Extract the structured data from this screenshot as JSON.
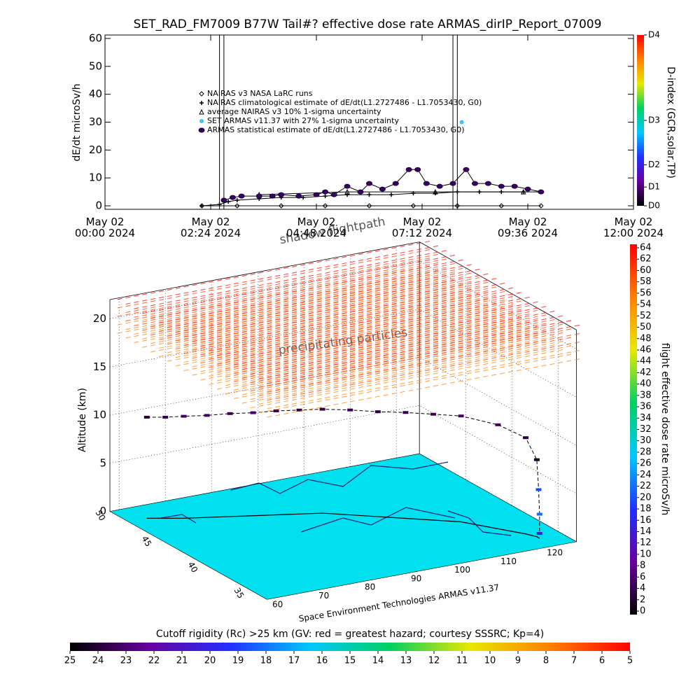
{
  "chart_data": [
    {
      "type": "line",
      "title": "SET_RAD_FM7009  B77W Tail#? effective dose rate ARMAS_dirIP_Report_07009",
      "y_label": "dE/dt microSv/h",
      "xlim": [
        0,
        12
      ],
      "xticks": [
        {
          "value": 0,
          "label": "May 02\n00:00 2024"
        },
        {
          "value": 2.4,
          "label": "May 02\n02:24 2024"
        },
        {
          "value": 4.8,
          "label": "May 02\n04:48 2024"
        },
        {
          "value": 7.2,
          "label": "May 02\n07:12 2024"
        },
        {
          "value": 9.6,
          "label": "May 02\n09:36 2024"
        },
        {
          "value": 12,
          "label": "May 02\n12:00 2024"
        }
      ],
      "ylim": [
        -1.25,
        61.25
      ],
      "yticks": [
        0,
        10,
        20,
        30,
        40,
        50,
        60
      ],
      "vlines": [
        2.6,
        2.7,
        7.9,
        8.0
      ],
      "series": [
        {
          "name": "NAIRAS v3 NASA LaRC runs",
          "marker": "diamond",
          "color": "#000000",
          "x": [
            2.2,
            3,
            4,
            5,
            6,
            7,
            8,
            9,
            9.9
          ],
          "values": [
            0,
            0,
            0,
            0,
            0,
            0,
            0,
            0,
            0
          ]
        },
        {
          "name": "NAIRAS climatological estimate of dE/dt(L1.2727486 - L1.7053430, G0)",
          "marker": "plus",
          "color": "#000000",
          "x": [
            2.2,
            2.6,
            2.8,
            3.0,
            3.5,
            4.0,
            4.5,
            5.0,
            5.5,
            6.0,
            6.5,
            7.0,
            7.5,
            8.0,
            8.5,
            9.0,
            9.5,
            9.9
          ],
          "values": [
            0,
            0.5,
            1.5,
            2,
            2.5,
            3,
            3,
            3.5,
            4,
            4,
            4,
            4.5,
            4.5,
            5,
            5,
            5,
            5,
            5
          ]
        },
        {
          "name": "average NAIRAS v3 10% 1-sigma uncertainty",
          "marker": "triangle",
          "color": "#000000",
          "x": [
            3.5,
            5.5,
            7.5,
            9.5
          ],
          "values": [
            4,
            5,
            5,
            5
          ]
        },
        {
          "name": "SET ARMAS v11.37 with 27% 1-sigma uncertainty",
          "marker": "circle",
          "color": "#40c0ff",
          "x": [
            8.1
          ],
          "values": [
            30
          ]
        },
        {
          "name": "ARMAS statistical estimate of dE/dt(L1.2727486 - L1.7053430, G0)",
          "marker": "asterisk",
          "color": "#3a0060",
          "x": [
            2.7,
            2.9,
            3.1,
            3.5,
            3.8,
            4.0,
            4.4,
            4.8,
            5.0,
            5.2,
            5.5,
            5.8,
            6.0,
            6.3,
            6.6,
            6.9,
            7.1,
            7.3,
            7.6,
            7.9,
            8.2,
            8.4,
            8.7,
            9.0,
            9.3,
            9.6,
            9.9
          ],
          "values": [
            2,
            3,
            3.5,
            3.5,
            3.5,
            4,
            3.5,
            4,
            5,
            4,
            7,
            5,
            8,
            6,
            8,
            13,
            13,
            8,
            7,
            8,
            13,
            8,
            8,
            7,
            7,
            6,
            5
          ]
        }
      ],
      "colorbar": {
        "title": "D-index (GCR,solar,TP)",
        "lim": [
          0,
          100
        ],
        "ticks": [
          {
            "value": 0,
            "label": "D0"
          },
          {
            "value": 11,
            "label": "D1"
          },
          {
            "value": 24,
            "label": "D2"
          },
          {
            "value": 50,
            "label": "D3"
          },
          {
            "value": 100,
            "label": "D4"
          }
        ]
      },
      "colormap": [
        "#000000",
        "#6a00a0",
        "#2030ff",
        "#00c8ff",
        "#00d060",
        "#e8e800",
        "#ff8000",
        "#ff0000"
      ]
    },
    {
      "type": "scatter3d",
      "z_label": "Altitude (km)",
      "annotations": [
        "shadow flightpath",
        "precipitating particles",
        "Space Environment Technologies ARMAS v11.37"
      ],
      "xlim": [
        58,
        125
      ],
      "xticks": [
        60,
        70,
        80,
        90,
        100,
        110,
        120
      ],
      "ylim": [
        33,
        50
      ],
      "yticks": [
        50,
        45,
        40,
        35
      ],
      "zlim": [
        0,
        22
      ],
      "zticks": [
        0,
        5,
        10,
        15,
        20
      ],
      "x": [
        62,
        65,
        68,
        72,
        76,
        80,
        84,
        88,
        92,
        96,
        100,
        104,
        108,
        112,
        116,
        119,
        120,
        120,
        120,
        120
      ],
      "y": [
        48,
        47.5,
        47,
        46.5,
        46,
        45.5,
        45,
        44.5,
        44,
        43,
        42,
        41,
        40,
        39,
        37,
        35.5,
        34.8,
        34.6,
        34.5,
        34.5
      ],
      "z": [
        10.5,
        10.5,
        10.6,
        10.6,
        10.7,
        10.7,
        10.8,
        10.8,
        10.8,
        10.9,
        10.9,
        11,
        11,
        11,
        10.8,
        10,
        8,
        5,
        2.5,
        0.5
      ],
      "values": [
        4,
        5,
        6,
        5,
        5,
        6,
        5,
        4,
        4,
        5,
        4,
        4,
        5,
        6,
        5,
        3,
        2,
        20,
        22,
        14
      ],
      "colorbar": {
        "title": "flight effective dose rate microSv/h",
        "lim": [
          0,
          64
        ],
        "ticks": [
          0,
          2,
          4,
          6,
          8,
          10,
          12,
          14,
          16,
          18,
          20,
          22,
          24,
          26,
          28,
          30,
          32,
          34,
          36,
          38,
          40,
          42,
          44,
          46,
          48,
          50,
          52,
          54,
          56,
          58,
          60,
          62,
          64
        ]
      },
      "floor_colorbar": {
        "title": "Cutoff rigidity (Rc) >25 km (GV: red = greatest hazard; courtesy SSSRC; Kp=4)",
        "lim": [
          25,
          5
        ],
        "ticks": [
          25,
          24,
          23,
          22,
          21,
          20,
          19,
          18,
          17,
          16,
          15,
          14,
          13,
          12,
          11,
          10,
          9,
          8,
          7,
          6,
          5
        ]
      }
    }
  ]
}
